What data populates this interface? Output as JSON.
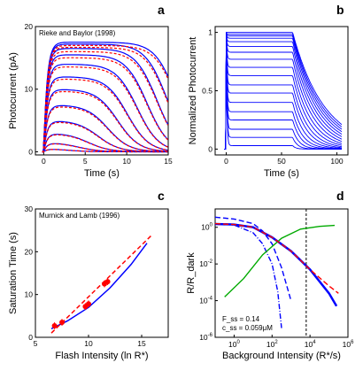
{
  "chart_data": [
    {
      "panel": "a",
      "type": "line",
      "annotation": "Rieke and Baylor (1998)",
      "xlabel": "Time (s)",
      "ylabel": "Photocurrent (pA)",
      "xlim": [
        -1,
        15
      ],
      "ylim": [
        -0.5,
        20
      ],
      "xticks": [
        0,
        5,
        10,
        15
      ],
      "yticks": [
        0,
        10,
        20
      ],
      "colors": {
        "model": "#0000ff",
        "data": "#ff0000"
      },
      "series_model_ends": [
        0.5,
        1.5,
        3,
        5,
        7.5,
        10,
        12,
        14,
        15.5,
        16.5,
        17.2,
        17.5
      ],
      "series_note": "blue model curves with red dashed data overlaid; smallest flashes peak then recover, brightest saturate near 17.5 pA"
    },
    {
      "panel": "b",
      "type": "line",
      "xlabel": "Time (s)",
      "ylabel": "Normalized Photocurrent",
      "xlim": [
        -10,
        110
      ],
      "ylim": [
        -0.05,
        1.05
      ],
      "xticks": [
        0,
        50,
        100
      ],
      "yticks": [
        0,
        0.5,
        1
      ],
      "colors": {
        "model": "#0000ff"
      },
      "plateau_levels": [
        0.03,
        0.1,
        0.17,
        0.25,
        0.32,
        0.4,
        0.48,
        0.55,
        0.63,
        0.7,
        0.77,
        0.83,
        0.88,
        0.92,
        0.95,
        0.97,
        0.985,
        1.0
      ],
      "step_off_time": 60
    },
    {
      "panel": "c",
      "type": "scatter",
      "annotation": "Murnick and Lamb (1996)",
      "xlabel": "Flash Intensity (ln R*)",
      "ylabel": "Saturation Time (s)",
      "xlim": [
        5,
        17.5
      ],
      "ylim": [
        0,
        30
      ],
      "xticks": [
        5,
        10,
        15
      ],
      "yticks": [
        0,
        10,
        20,
        30
      ],
      "points": [
        {
          "x": 6.8,
          "y": 2.7
        },
        {
          "x": 7.5,
          "y": 3.5
        },
        {
          "x": 9.7,
          "y": 7.2
        },
        {
          "x": 10.0,
          "y": 7.8
        },
        {
          "x": 11.5,
          "y": 12.5
        },
        {
          "x": 11.8,
          "y": 13.0
        }
      ],
      "model_curve": [
        [
          6.5,
          2.0
        ],
        [
          8,
          3.8
        ],
        [
          10,
          7.0
        ],
        [
          12,
          11.5
        ],
        [
          14,
          17.0
        ],
        [
          15.5,
          22.0
        ]
      ],
      "fit_line": [
        [
          6.5,
          1.0
        ],
        [
          16,
          24.0
        ]
      ],
      "colors": {
        "points": "#ff0000",
        "model": "#0000ff",
        "fit": "#ff0000"
      }
    },
    {
      "panel": "d",
      "type": "line",
      "xlabel": "Background Intensity (R*/s)",
      "ylabel": "R/R_dark",
      "xscale": "log",
      "yscale": "log",
      "xlim_log10": [
        -1,
        6
      ],
      "ylim_log10": [
        -6,
        1
      ],
      "xticks_log10": [
        0,
        2,
        4,
        6
      ],
      "yticks_log10": [
        -6,
        -4,
        -2,
        0
      ],
      "vline_x_log10": 3.8,
      "annotations": [
        "F_ss = 0.14",
        "c_ss = 0.059μM"
      ],
      "series": [
        {
          "style": "solid",
          "color": "#0000ff",
          "points_log10": [
            [
              -1,
              0.18
            ],
            [
              0,
              0.15
            ],
            [
              1,
              0.0
            ],
            [
              2,
              -0.55
            ],
            [
              3,
              -1.3
            ],
            [
              4,
              -2.3
            ],
            [
              5,
              -3.6
            ],
            [
              5.4,
              -4.3
            ]
          ]
        },
        {
          "style": "dashed",
          "color": "#0000ff",
          "points_log10": [
            [
              -1,
              0.55
            ],
            [
              0,
              0.45
            ],
            [
              1,
              0.2
            ],
            [
              1.5,
              -0.2
            ],
            [
              2,
              -0.9
            ],
            [
              2.5,
              -2.2
            ],
            [
              3,
              -4.0
            ]
          ]
        },
        {
          "style": "dashdot",
          "color": "#0000ff",
          "points_log10": [
            [
              -1,
              0.2
            ],
            [
              0,
              0.12
            ],
            [
              1,
              -0.3
            ],
            [
              1.5,
              -0.9
            ],
            [
              2,
              -2.0
            ],
            [
              2.3,
              -3.5
            ],
            [
              2.5,
              -5.5
            ]
          ]
        },
        {
          "style": "solid",
          "color": "#00aa00",
          "points_log10": [
            [
              -0.5,
              -3.8
            ],
            [
              0.5,
              -2.8
            ],
            [
              1.5,
              -1.5
            ],
            [
              2.5,
              -0.6
            ],
            [
              3.5,
              -0.1
            ],
            [
              4.5,
              0.05
            ],
            [
              5.3,
              0.1
            ]
          ]
        },
        {
          "style": "dashed",
          "color": "#ff0000",
          "points_log10": [
            [
              -1,
              0.2
            ],
            [
              0,
              0.15
            ],
            [
              1,
              0.0
            ],
            [
              2,
              -0.55
            ],
            [
              3,
              -1.3
            ],
            [
              4,
              -2.3
            ],
            [
              5,
              -3.2
            ],
            [
              5.5,
              -3.6
            ]
          ]
        }
      ]
    }
  ],
  "panel_letters": [
    "a",
    "b",
    "c",
    "d"
  ]
}
